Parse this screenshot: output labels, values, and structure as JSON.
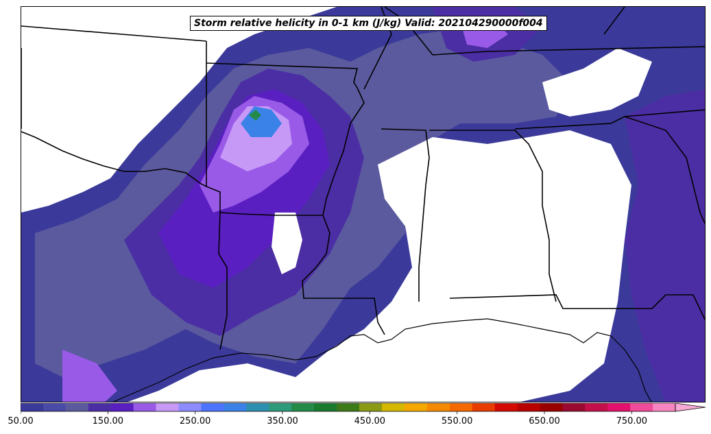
{
  "map": {
    "title": "Storm relative helicity in 0-1 km (J/kg) Valid: 202104290000f004",
    "variable": "Storm relative helicity in 0-1 km",
    "units": "J/kg",
    "valid": "202104290000f004"
  },
  "colorbar": {
    "min": 50,
    "max": 800,
    "step": 25,
    "extend": "max",
    "tick_labels": [
      "50.00",
      "150.00",
      "250.00",
      "350.00",
      "450.00",
      "550.00",
      "650.00",
      "750.00"
    ],
    "colors": [
      "#3b3a9a",
      "#4a4aa8",
      "#5b5a9e",
      "#4c2ea4",
      "#5a1fc0",
      "#9a5ae8",
      "#c799f7",
      "#8c8cff",
      "#4d74ff",
      "#3a82e8",
      "#2c8fb0",
      "#2e9a7a",
      "#238a4a",
      "#1a7a2e",
      "#3d7a1a",
      "#8a9a14",
      "#d4b800",
      "#f5a800",
      "#f58a00",
      "#f56a00",
      "#e83c00",
      "#d40a00",
      "#b80000",
      "#9a0000",
      "#9a0a30",
      "#c4104a",
      "#e4106e",
      "#f04a9a",
      "#f584c0"
    ],
    "extend_color": "#f7a8d4"
  }
}
